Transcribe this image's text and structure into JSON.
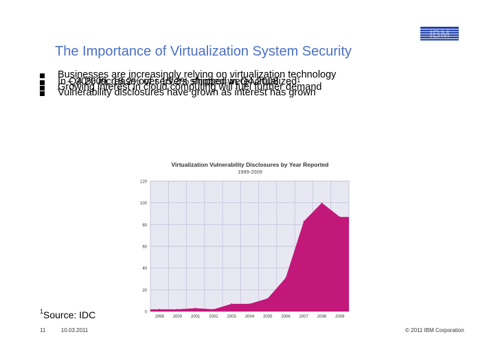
{
  "logo": {
    "text": "IBM",
    "color": "#1f3fa8"
  },
  "slide": {
    "title": "The Importance of Virtualization System Security",
    "title_color": "#4a6fc6",
    "bullets": [
      {
        "text": "Businesses are increasingly relying on virtualization technology"
      },
      {
        "text": "In Q4 2009, 18.2% of servers shipped were virtualized",
        "sup": "1"
      },
      {
        "text": "– 20% increase over 15.2% shipped in Q4 2008",
        "sub": true
      },
      {
        "text": "Growing interest in cloud computing will fuel further demand"
      },
      {
        "text": "Vulnerability disclosures have grown as interest has grown"
      }
    ],
    "footnote_sup": "1",
    "footnote": "Source: IDC",
    "page_number": "11",
    "date": "10.03.2011",
    "copyright": "© 2011 IBM Corporation"
  },
  "chart_data": {
    "type": "area",
    "title": "Virtualization Vulnerability Disclosures by Year Reported",
    "subtitle": "1999-2009",
    "categories": [
      "1999",
      "2000",
      "2001",
      "2002",
      "2003",
      "2004",
      "2005",
      "2006",
      "2007",
      "2008",
      "2009"
    ],
    "values": [
      2,
      2,
      3,
      2,
      7,
      7,
      12,
      31,
      83,
      100,
      87
    ],
    "ylim": [
      0,
      120
    ],
    "yticks": [
      0,
      20,
      40,
      60,
      80,
      100,
      120
    ],
    "grid": true,
    "area_color": "#c2187a",
    "plot_bg": "#e8e8f3",
    "grid_color": "#b9b9d3"
  }
}
